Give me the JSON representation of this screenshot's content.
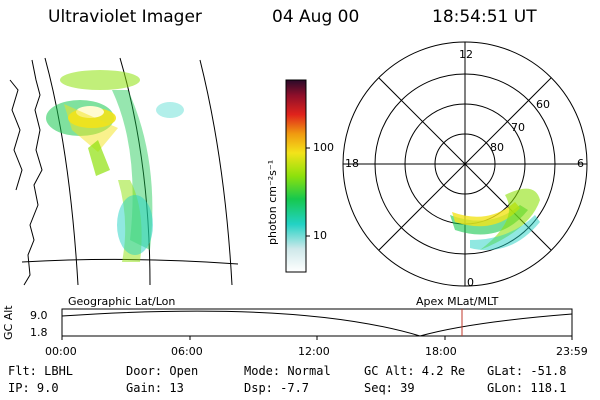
{
  "header": {
    "title": "Ultraviolet Imager",
    "date": "04 Aug 00",
    "time": "18:54:51 UT"
  },
  "left_panel": {
    "caption": "Geographic Lat/Lon"
  },
  "colorbar": {
    "unit_label": "photon cm⁻²s⁻¹",
    "ticks": [
      "100",
      "10"
    ],
    "colors": [
      "#ffffff",
      "#cfe8ea",
      "#22d2c4",
      "#16c84e",
      "#8ee10c",
      "#f3e31a",
      "#f09a10",
      "#e0231c",
      "#8e0f2a",
      "#2a0a2a"
    ]
  },
  "polar_plot": {
    "caption": "Apex MLat/MLT",
    "mlt_labels": {
      "top": "12",
      "left": "18",
      "right": "6",
      "bottom": "0"
    },
    "lat_labels": [
      "60",
      "70",
      "80"
    ]
  },
  "timeline": {
    "axis_title": "GC Alt",
    "y_ticks": [
      "9.0",
      "1.8"
    ],
    "x_ticks": [
      "00:00",
      "06:00",
      "12:00",
      "18:00",
      "23:59"
    ],
    "current_time_marker_color": "#c0392b"
  },
  "status": {
    "col1": [
      "Flt: LBHL",
      "IP:  9.0"
    ],
    "col2": [
      "Door: Open",
      "Gain: 13"
    ],
    "col3": [
      "Mode: Normal",
      "Dsp:    -7.7"
    ],
    "col4": [
      "GC Alt: 4.2 Re",
      "Seq: 39"
    ],
    "col5": [
      "GLat: -51.8",
      "GLon: 118.1"
    ]
  }
}
